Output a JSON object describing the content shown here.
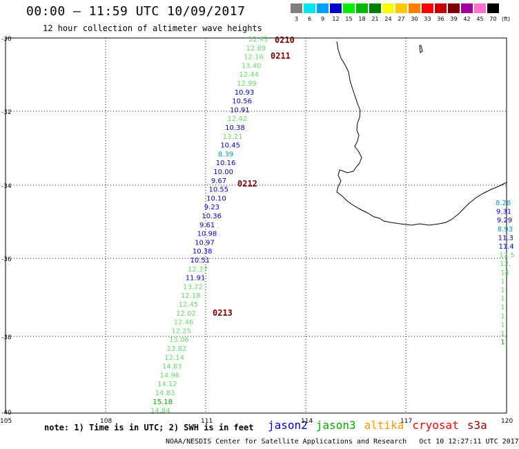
{
  "title": "00:00 — 11:59 UTC 10/09/2017",
  "subtitle": "12 hour collection of altimeter wave heights",
  "colorbar": {
    "unit": "(ft)",
    "bins": [
      {
        "label": "3",
        "color": "#808080"
      },
      {
        "label": "6",
        "color": "#00e5ee"
      },
      {
        "label": "9",
        "color": "#00a0ff"
      },
      {
        "label": "12",
        "color": "#0000cc"
      },
      {
        "label": "15",
        "color": "#00ee00"
      },
      {
        "label": "18",
        "color": "#00b800"
      },
      {
        "label": "21",
        "color": "#008000"
      },
      {
        "label": "24",
        "color": "#ffff00"
      },
      {
        "label": "27",
        "color": "#ffc800"
      },
      {
        "label": "30",
        "color": "#ff8000"
      },
      {
        "label": "33",
        "color": "#ff0000"
      },
      {
        "label": "36",
        "color": "#c80000"
      },
      {
        "label": "39",
        "color": "#800000"
      },
      {
        "label": "42",
        "color": "#a000a0"
      },
      {
        "label": "45",
        "color": "#ff70d0"
      },
      {
        "label": "70",
        "color": "#000000"
      }
    ]
  },
  "axes": {
    "lat_labels": [
      "-30",
      "-32",
      "-34",
      "-36",
      "-38",
      "-40"
    ],
    "lon_labels": [
      "105",
      "108",
      "111",
      "114",
      "117",
      "120"
    ]
  },
  "pass_labels": [
    "0210",
    "0211",
    "0212",
    "0213"
  ],
  "track_main": [
    {
      "v": "12.43",
      "c": "#66dd66"
    },
    {
      "v": "12.89",
      "c": "#66dd66"
    },
    {
      "v": "12.16",
      "c": "#66dd66"
    },
    {
      "v": "13.40",
      "c": "#66dd66"
    },
    {
      "v": "12.44",
      "c": "#66dd66"
    },
    {
      "v": "12.99",
      "c": "#66dd66"
    },
    {
      "v": "10.93",
      "c": "#0000cc"
    },
    {
      "v": "10.56",
      "c": "#0000cc"
    },
    {
      "v": "10.91",
      "c": "#0000cc"
    },
    {
      "v": "12.42",
      "c": "#66dd66"
    },
    {
      "v": "10.38",
      "c": "#0000cc"
    },
    {
      "v": "13.21",
      "c": "#66dd66"
    },
    {
      "v": "10.45",
      "c": "#0000cc"
    },
    {
      "v": "8.39",
      "c": "#0099cc"
    },
    {
      "v": "10.16",
      "c": "#0000cc"
    },
    {
      "v": "10.00",
      "c": "#0000cc"
    },
    {
      "v": "9.67",
      "c": "#0000cc"
    },
    {
      "v": "10.55",
      "c": "#0000cc"
    },
    {
      "v": "10.10",
      "c": "#0000cc"
    },
    {
      "v": "9.23",
      "c": "#0000cc"
    },
    {
      "v": "10.36",
      "c": "#0000cc"
    },
    {
      "v": "9.61",
      "c": "#0000cc"
    },
    {
      "v": "10.98",
      "c": "#0000cc"
    },
    {
      "v": "10.97",
      "c": "#0000cc"
    },
    {
      "v": "10.38",
      "c": "#0000cc"
    },
    {
      "v": "10.51",
      "c": "#0000cc"
    },
    {
      "v": "12.37",
      "c": "#66dd66"
    },
    {
      "v": "11.91",
      "c": "#0000cc"
    },
    {
      "v": "13.22",
      "c": "#66dd66"
    },
    {
      "v": "12.18",
      "c": "#66dd66"
    },
    {
      "v": "12.45",
      "c": "#66dd66"
    },
    {
      "v": "12.02",
      "c": "#66dd66"
    },
    {
      "v": "12.46",
      "c": "#66dd66"
    },
    {
      "v": "12.25",
      "c": "#66dd66"
    },
    {
      "v": "13.06",
      "c": "#66dd66"
    },
    {
      "v": "13.82",
      "c": "#66dd66"
    },
    {
      "v": "12.14",
      "c": "#66dd66"
    },
    {
      "v": "14.83",
      "c": "#66dd66"
    },
    {
      "v": "14.96",
      "c": "#66dd66"
    },
    {
      "v": "14.12",
      "c": "#66dd66"
    },
    {
      "v": "14.83",
      "c": "#66dd66"
    },
    {
      "v": "15.18",
      "c": "#00aa00"
    },
    {
      "v": "14.84",
      "c": "#66dd66"
    }
  ],
  "track_right": [
    {
      "v": "8.28",
      "c": "#0099cc"
    },
    {
      "v": "9.31",
      "c": "#0000cc"
    },
    {
      "v": "9.29",
      "c": "#0000cc"
    },
    {
      "v": "8.93",
      "c": "#0099cc"
    },
    {
      "v": "11.3",
      "c": "#0000cc"
    },
    {
      "v": "11.4",
      "c": "#0000cc"
    },
    {
      "v": "12.5",
      "c": "#66dd66"
    },
    {
      "v": "12.",
      "c": "#66dd66"
    },
    {
      "v": "14",
      "c": "#66dd66"
    },
    {
      "v": "1",
      "c": "#66dd66"
    },
    {
      "v": "1",
      "c": "#66dd66"
    },
    {
      "v": "1",
      "c": "#66dd66"
    },
    {
      "v": "1",
      "c": "#66dd66"
    },
    {
      "v": "1",
      "c": "#66dd66"
    },
    {
      "v": "1",
      "c": "#66dd66"
    },
    {
      "v": "1",
      "c": "#66dd66"
    },
    {
      "v": "1",
      "c": "#00aa00"
    }
  ],
  "footer": {
    "note": "note: 1) Time is in UTC; 2) SWH is in feet",
    "credit": "NOAA/NESDIS Center for Satellite Applications and Research",
    "timestamp": "Oct 10 12:27:11 UTC 2017"
  },
  "legend": [
    {
      "name": "jason2",
      "color": "#0000cc"
    },
    {
      "name": "jason3",
      "color": "#00aa00"
    },
    {
      "name": "altika",
      "color": "#ff9900"
    },
    {
      "name": "cryosat",
      "color": "#ff0000"
    },
    {
      "name": "s3a",
      "color": "#990000"
    }
  ]
}
